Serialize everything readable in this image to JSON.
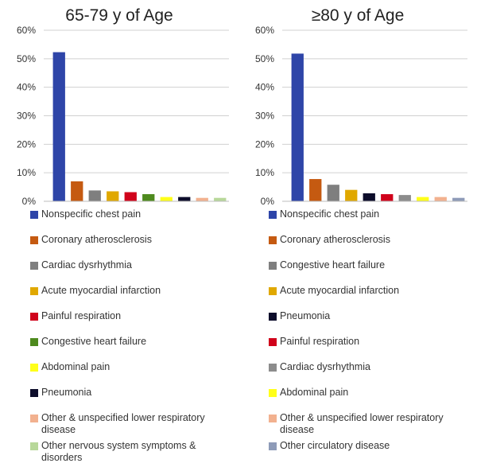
{
  "chart_data": [
    {
      "type": "bar",
      "title": "65-79 y of Age",
      "ylim": [
        0,
        60
      ],
      "yticks": [
        "0%",
        "10%",
        "20%",
        "30%",
        "40%",
        "50%",
        "60%"
      ],
      "grid": true,
      "legend_position": "bottom",
      "categories": [
        "Nonspecific chest pain",
        "Coronary atherosclerosis",
        "Cardiac dysrhythmia",
        "Acute myocardial infarction",
        "Painful respiration",
        "Congestive heart failure",
        "Abdominal pain",
        "Pneumonia",
        "Other & unspecified lower respiratory disease",
        "Other nervous system symptoms & disorders"
      ],
      "values": [
        52.3,
        7.0,
        3.8,
        3.5,
        3.2,
        2.5,
        1.5,
        1.5,
        1.2,
        1.2
      ],
      "colors": [
        "#2E45A8",
        "#C55A11",
        "#7F7F7F",
        "#E0A800",
        "#D0021B",
        "#4E8A1E",
        "#FFFF1A",
        "#0D0D2B",
        "#F2B18F",
        "#B8D89A"
      ]
    },
    {
      "type": "bar",
      "title": "≥80 y of Age",
      "ylim": [
        0,
        60
      ],
      "yticks": [
        "0%",
        "10%",
        "20%",
        "30%",
        "40%",
        "50%",
        "60%"
      ],
      "grid": true,
      "legend_position": "bottom",
      "categories": [
        "Nonspecific chest pain",
        "Coronary atherosclerosis",
        "Congestive heart failure",
        "Acute myocardial infarction",
        "Pneumonia",
        "Painful respiration",
        "Cardiac dysrhythmia",
        "Abdominal pain",
        "Other & unspecified lower respiratory disease",
        "Other circulatory disease"
      ],
      "values": [
        51.8,
        7.8,
        5.8,
        4.0,
        2.8,
        2.5,
        2.2,
        1.5,
        1.5,
        1.2
      ],
      "colors": [
        "#2E45A8",
        "#C55A11",
        "#7F7F7F",
        "#E0A800",
        "#0D0D2B",
        "#D0021B",
        "#8C8C8C",
        "#FFFF1A",
        "#F2B18F",
        "#8E9BB8"
      ]
    }
  ]
}
